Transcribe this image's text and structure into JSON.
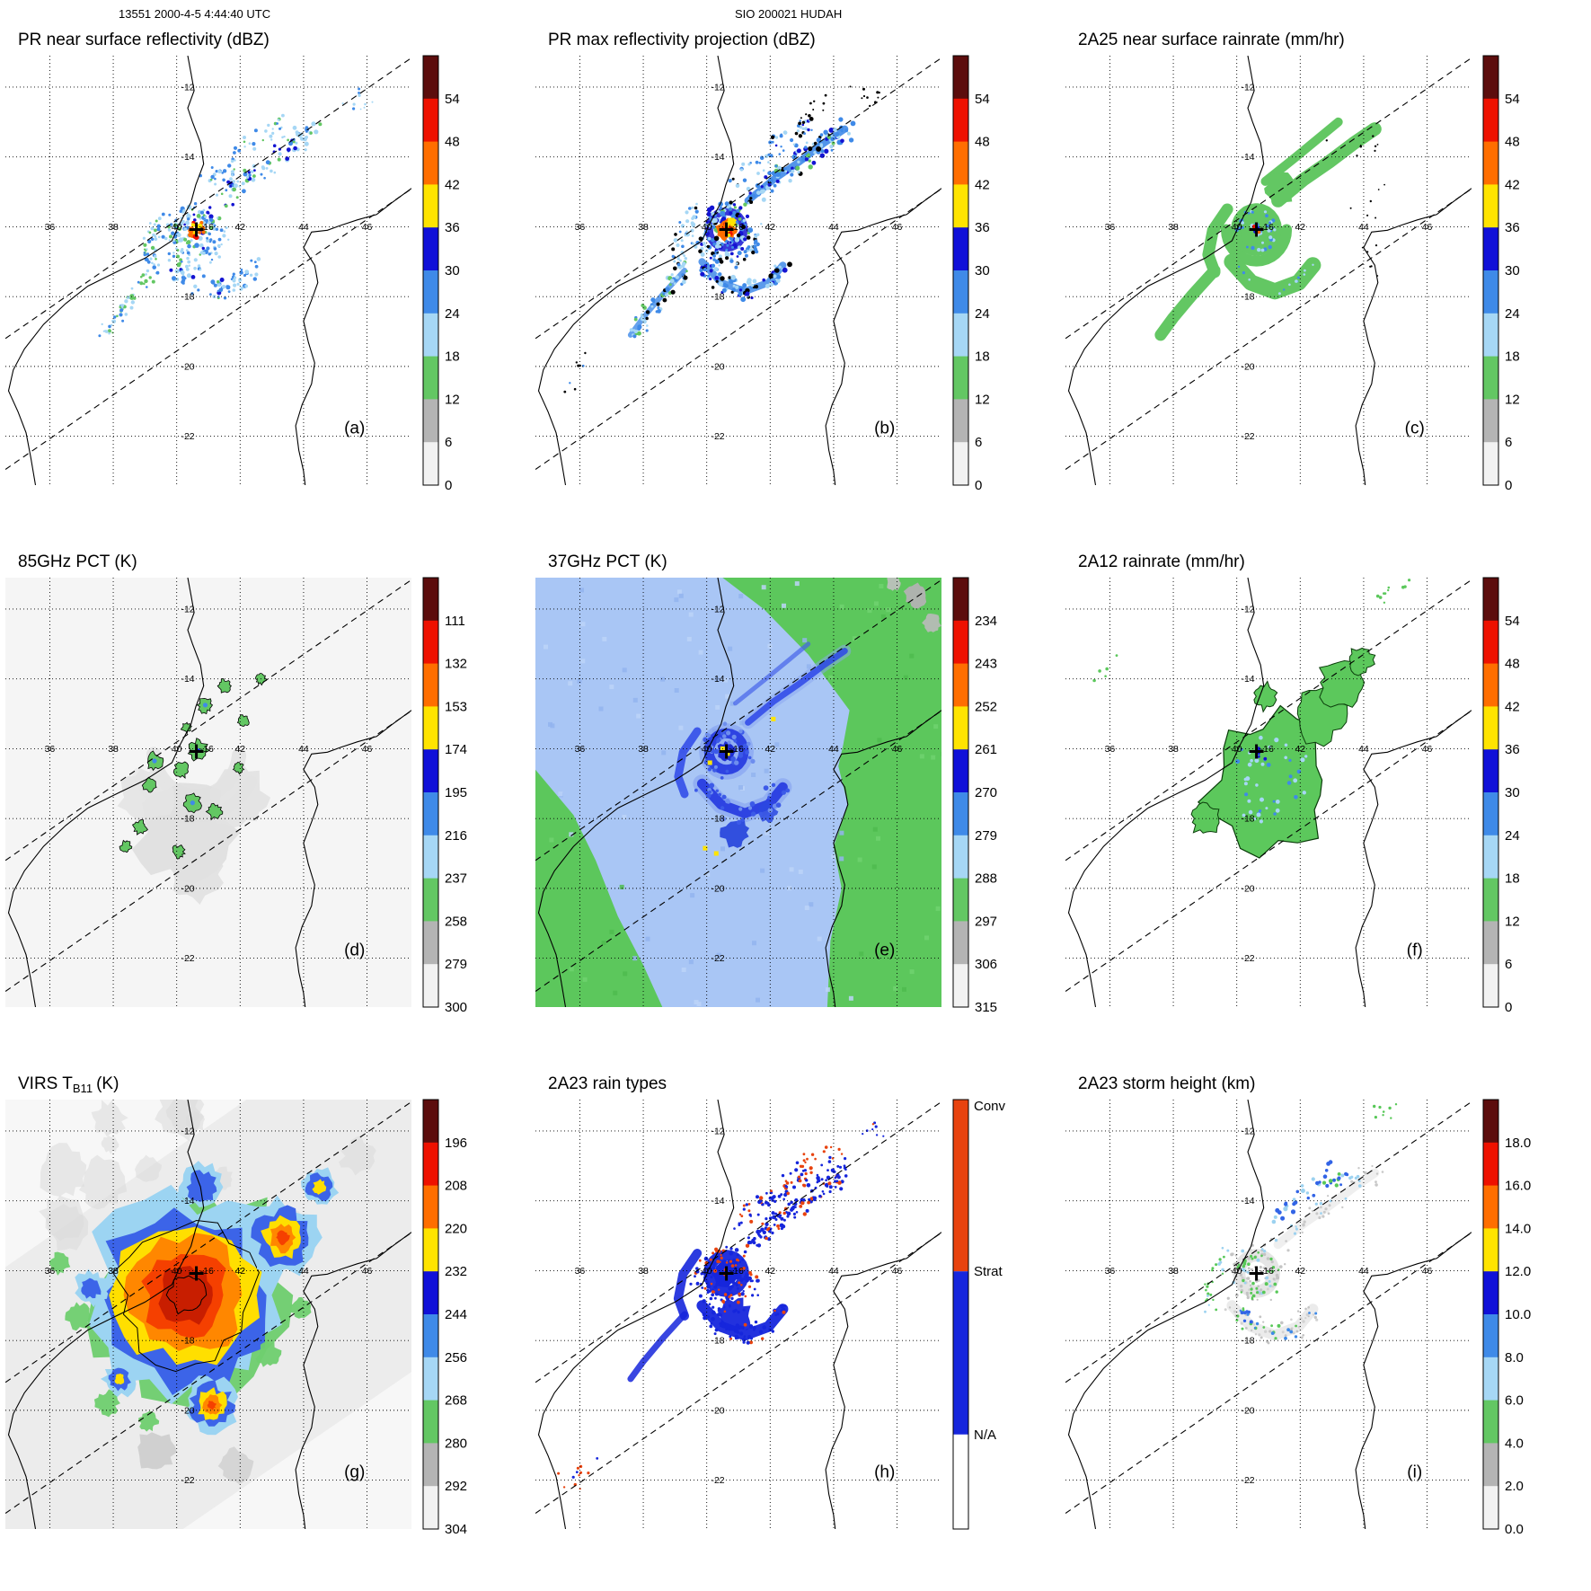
{
  "header": {
    "left": "13551 2000-4-5 4:44:40 UTC",
    "center": "SIO 200021 HUDAH"
  },
  "map": {
    "lon_ticks": [
      "36",
      "38",
      "40",
      "42",
      "44",
      "46"
    ],
    "lat_ticks": [
      "-12",
      "-14",
      "-16",
      "-18",
      "-20",
      "-22"
    ],
    "storm_marker": "+"
  },
  "colors": {
    "scale10": [
      "#5c0d0d",
      "#ee1100",
      "#ff6e00",
      "#ffe400",
      "#1010d8",
      "#3f8ae8",
      "#a6d7f5",
      "#63c763",
      "#b4b4b4",
      "#f2f2f2"
    ],
    "conv": "#e8430f",
    "strat": "#1626dc",
    "na": "#ffffff"
  },
  "panels": [
    {
      "id": "a",
      "title": "PR near surface reflectivity (dBZ)",
      "letter": "(a)",
      "colorbar": {
        "ticks": [
          "54",
          "48",
          "42",
          "36",
          "30",
          "24",
          "18",
          "12",
          "6",
          "0"
        ]
      }
    },
    {
      "id": "b",
      "title": "PR max reflectivity projection (dBZ)",
      "letter": "(b)",
      "colorbar": {
        "ticks": [
          "54",
          "48",
          "42",
          "36",
          "30",
          "24",
          "18",
          "12",
          "6",
          "0"
        ]
      }
    },
    {
      "id": "c",
      "title": "2A25 near surface rainrate (mm/hr)",
      "letter": "(c)",
      "colorbar": {
        "ticks": [
          "54",
          "48",
          "42",
          "36",
          "30",
          "24",
          "18",
          "12",
          "6",
          "0"
        ]
      }
    },
    {
      "id": "d",
      "title": "85GHz PCT (K)",
      "letter": "(d)",
      "colorbar": {
        "ticks": [
          "111",
          "132",
          "153",
          "174",
          "195",
          "216",
          "237",
          "258",
          "279",
          "300"
        ]
      }
    },
    {
      "id": "e",
      "title": "37GHz PCT (K)",
      "letter": "(e)",
      "colorbar": {
        "ticks": [
          "234",
          "243",
          "252",
          "261",
          "270",
          "279",
          "288",
          "297",
          "306",
          "315"
        ]
      }
    },
    {
      "id": "f",
      "title": "2A12 rainrate (mm/hr)",
      "letter": "(f)",
      "colorbar": {
        "ticks": [
          "54",
          "48",
          "42",
          "36",
          "30",
          "24",
          "18",
          "12",
          "6",
          "0"
        ]
      }
    },
    {
      "id": "g",
      "title": "VIRS TB11 (K)",
      "title_pre": "VIRS T",
      "title_sub": "B11",
      "title_post": "(K)",
      "letter": "(g)",
      "colorbar": {
        "ticks": [
          "196",
          "208",
          "220",
          "232",
          "244",
          "256",
          "268",
          "280",
          "292",
          "304"
        ]
      }
    },
    {
      "id": "h",
      "title": "2A23 rain types",
      "letter": "(h)",
      "colorbar": {
        "categories": [
          "Conv",
          "Strat",
          "N/A"
        ]
      }
    },
    {
      "id": "i",
      "title": "2A23 storm height (km)",
      "letter": "(i)",
      "colorbar": {
        "ticks": [
          "18.0",
          "16.0",
          "14.0",
          "12.0",
          "10.0",
          "8.0",
          "6.0",
          "4.0",
          "2.0",
          "0.0"
        ]
      }
    }
  ],
  "chart_data": [
    {
      "panel": "a",
      "type": "heatmap",
      "title": "PR near surface reflectivity",
      "units": "dBZ",
      "colorbar_ticks": [
        54,
        48,
        42,
        36,
        30,
        24,
        18,
        12,
        6,
        0
      ],
      "lon_range": [
        34.6,
        47.4
      ],
      "lat_range": [
        -23.4,
        -11.1
      ],
      "storm_center": {
        "lon": 40.6,
        "lat": -16.1
      },
      "notes": "TRMM PR narrow swath between dashed edges; 42-54 dBZ eyewall core near 40.6E 16.1S, spiral bands 18-36 dBZ"
    },
    {
      "panel": "b",
      "type": "heatmap",
      "title": "PR max reflectivity projection",
      "units": "dBZ",
      "colorbar_ticks": [
        54,
        48,
        42,
        36,
        30,
        24,
        18,
        12,
        6,
        0
      ],
      "notes": "denser echo coverage than panel a, same swath and storm center"
    },
    {
      "panel": "c",
      "type": "heatmap",
      "title": "2A25 near surface rainrate",
      "units": "mm/hr",
      "colorbar_ticks": [
        54,
        48,
        42,
        36,
        30,
        24,
        18,
        12,
        6,
        0
      ],
      "notes": "light rain (green 1-12) over spiral bands, blue 18-30 near center"
    },
    {
      "panel": "d",
      "type": "heatmap",
      "title": "85GHz PCT",
      "units": "K",
      "colorbar_ticks": [
        111,
        132,
        153,
        174,
        195,
        216,
        237,
        258,
        279,
        300
      ],
      "notes": "mostly 258-300 K background, scattered 216-237 K (green) ice-scattering cells with ~195 K (blue) cores around eyewall and bands"
    },
    {
      "panel": "e",
      "type": "heatmap",
      "title": "37GHz PCT",
      "units": "K",
      "colorbar_ticks": [
        234,
        243,
        252,
        261,
        270,
        279,
        288,
        297,
        306,
        315
      ],
      "notes": "ocean ~270-279 K (light blue), land/background ~288 K (green), 261-270 K (dark blue) spiral, few 252-261 K (yellow) pixels at core"
    },
    {
      "panel": "f",
      "type": "heatmap",
      "title": "2A12 rainrate",
      "units": "mm/hr",
      "colorbar_ticks": [
        54,
        48,
        42,
        36,
        30,
        24,
        18,
        12,
        6,
        0
      ],
      "notes": "broad 1-6 mm/hr (green) shield with embedded 12-24 (blue) pixels, center marked +"
    },
    {
      "panel": "g",
      "type": "heatmap",
      "title": "VIRS TB11",
      "units": "K",
      "colorbar_ticks": [
        196,
        208,
        220,
        232,
        244,
        256,
        268,
        280,
        292,
        304
      ],
      "notes": "large cold cloud shield: <208 K (red/dark-red) CDO ringed by 232 (yellow), 244-256 (blue/cyan), 268 (green) edges over ~292-304 K background"
    },
    {
      "panel": "h",
      "type": "heatmap",
      "title": "2A23 rain types",
      "categories": [
        "Conv",
        "Strat",
        "N/A"
      ],
      "notes": "stratiform (blue) dominant through eyewall/bands with embedded convective (orange-red) pixels, mostly in NE band and around center"
    },
    {
      "panel": "i",
      "type": "heatmap",
      "title": "2A23 storm height",
      "units": "km",
      "colorbar_ticks": [
        18,
        16,
        14,
        12,
        10,
        8,
        6,
        4,
        2,
        0
      ],
      "notes": "mostly 4-8 km echo tops (gray/green/cyan) with 10 km (blue) cluster in NE band"
    }
  ]
}
